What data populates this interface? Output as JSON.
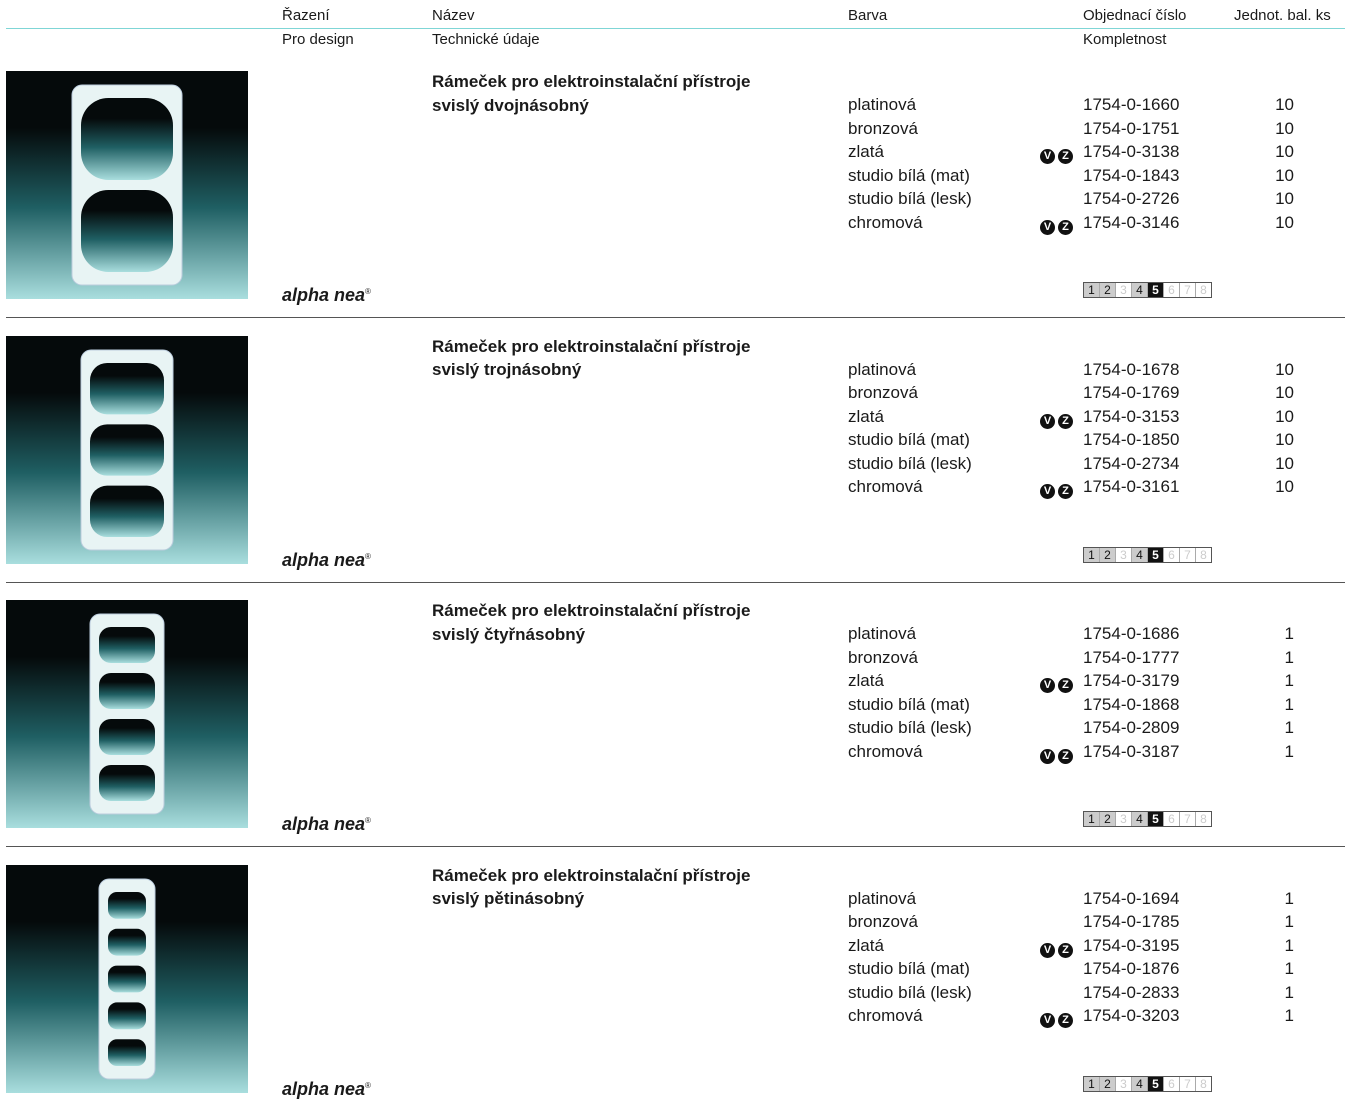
{
  "header": {
    "row1": [
      "Řazení",
      "Název",
      "Barva",
      "Objednací číslo",
      "Jednot. bal. ks"
    ],
    "row2": [
      "Pro design",
      "Technické údaje",
      "Kompletnost"
    ]
  },
  "products": [
    {
      "title": [
        "Rámeček pro elektroinstalační přístroje",
        "svislý dvojnásobný"
      ],
      "brand": {
        "name": "alpha nea",
        "mark": "®"
      },
      "rows": [
        {
          "color": "platinová",
          "code": "1754-0-1660",
          "qty": "10"
        },
        {
          "color": "bronzová",
          "code": "1754-0-1751",
          "qty": "10"
        },
        {
          "color": "zlatá",
          "icons": [
            "V",
            "Z"
          ],
          "code": "1754-0-3138",
          "qty": "10"
        },
        {
          "color": "studio bílá (mat)",
          "code": "1754-0-1843",
          "qty": "10"
        },
        {
          "color": "studio bílá (lesk)",
          "code": "1754-0-2726",
          "qty": "10"
        },
        {
          "color": "chromová",
          "icons": [
            "V",
            "Z"
          ],
          "code": "1754-0-3146",
          "qty": "10"
        }
      ],
      "kompletnost": {
        "labels": [
          "1",
          "2",
          "3",
          "4",
          "5",
          "6",
          "7",
          "8"
        ],
        "states": [
          "on",
          "on",
          "off",
          "on",
          "active",
          "off",
          "off",
          "off"
        ]
      }
    },
    {
      "title": [
        "Rámeček pro elektroinstalační přístroje",
        "svislý trojnásobný"
      ],
      "brand": {
        "name": "alpha nea",
        "mark": "®"
      },
      "rows": [
        {
          "color": "platinová",
          "code": "1754-0-1678",
          "qty": "10"
        },
        {
          "color": "bronzová",
          "code": "1754-0-1769",
          "qty": "10"
        },
        {
          "color": "zlatá",
          "icons": [
            "V",
            "Z"
          ],
          "code": "1754-0-3153",
          "qty": "10"
        },
        {
          "color": "studio bílá (mat)",
          "code": "1754-0-1850",
          "qty": "10"
        },
        {
          "color": "studio bílá (lesk)",
          "code": "1754-0-2734",
          "qty": "10"
        },
        {
          "color": "chromová",
          "icons": [
            "V",
            "Z"
          ],
          "code": "1754-0-3161",
          "qty": "10"
        }
      ],
      "kompletnost": {
        "labels": [
          "1",
          "2",
          "3",
          "4",
          "5",
          "6",
          "7",
          "8"
        ],
        "states": [
          "on",
          "on",
          "off",
          "on",
          "active",
          "off",
          "off",
          "off"
        ]
      }
    },
    {
      "title": [
        "Rámeček pro elektroinstalační přístroje",
        "svislý čtyřnásobný"
      ],
      "brand": {
        "name": "alpha nea",
        "mark": "®"
      },
      "rows": [
        {
          "color": "platinová",
          "code": "1754-0-1686",
          "qty": "1"
        },
        {
          "color": "bronzová",
          "code": "1754-0-1777",
          "qty": "1"
        },
        {
          "color": "zlatá",
          "icons": [
            "V",
            "Z"
          ],
          "code": "1754-0-3179",
          "qty": "1"
        },
        {
          "color": "studio bílá (mat)",
          "code": "1754-0-1868",
          "qty": "1"
        },
        {
          "color": "studio bílá (lesk)",
          "code": "1754-0-2809",
          "qty": "1"
        },
        {
          "color": "chromová",
          "icons": [
            "V",
            "Z"
          ],
          "code": "1754-0-3187",
          "qty": "1"
        }
      ],
      "kompletnost": {
        "labels": [
          "1",
          "2",
          "3",
          "4",
          "5",
          "6",
          "7",
          "8"
        ],
        "states": [
          "on",
          "on",
          "off",
          "on",
          "active",
          "off",
          "off",
          "off"
        ]
      }
    },
    {
      "title": [
        "Rámeček pro elektroinstalační přístroje",
        "svislý pětinásobný"
      ],
      "brand": {
        "name": "alpha nea",
        "mark": "®"
      },
      "rows": [
        {
          "color": "platinová",
          "code": "1754-0-1694",
          "qty": "1"
        },
        {
          "color": "bronzová",
          "code": "1754-0-1785",
          "qty": "1"
        },
        {
          "color": "zlatá",
          "icons": [
            "V",
            "Z"
          ],
          "code": "1754-0-3195",
          "qty": "1"
        },
        {
          "color": "studio bílá (mat)",
          "code": "1754-0-1876",
          "qty": "1"
        },
        {
          "color": "studio bílá (lesk)",
          "code": "1754-0-2833",
          "qty": "1"
        },
        {
          "color": "chromová",
          "icons": [
            "V",
            "Z"
          ],
          "code": "1754-0-3203",
          "qty": "1"
        }
      ],
      "kompletnost": {
        "labels": [
          "1",
          "2",
          "3",
          "4",
          "5",
          "6",
          "7",
          "8"
        ],
        "states": [
          "on",
          "on",
          "off",
          "on",
          "active",
          "off",
          "off",
          "off"
        ]
      }
    }
  ]
}
